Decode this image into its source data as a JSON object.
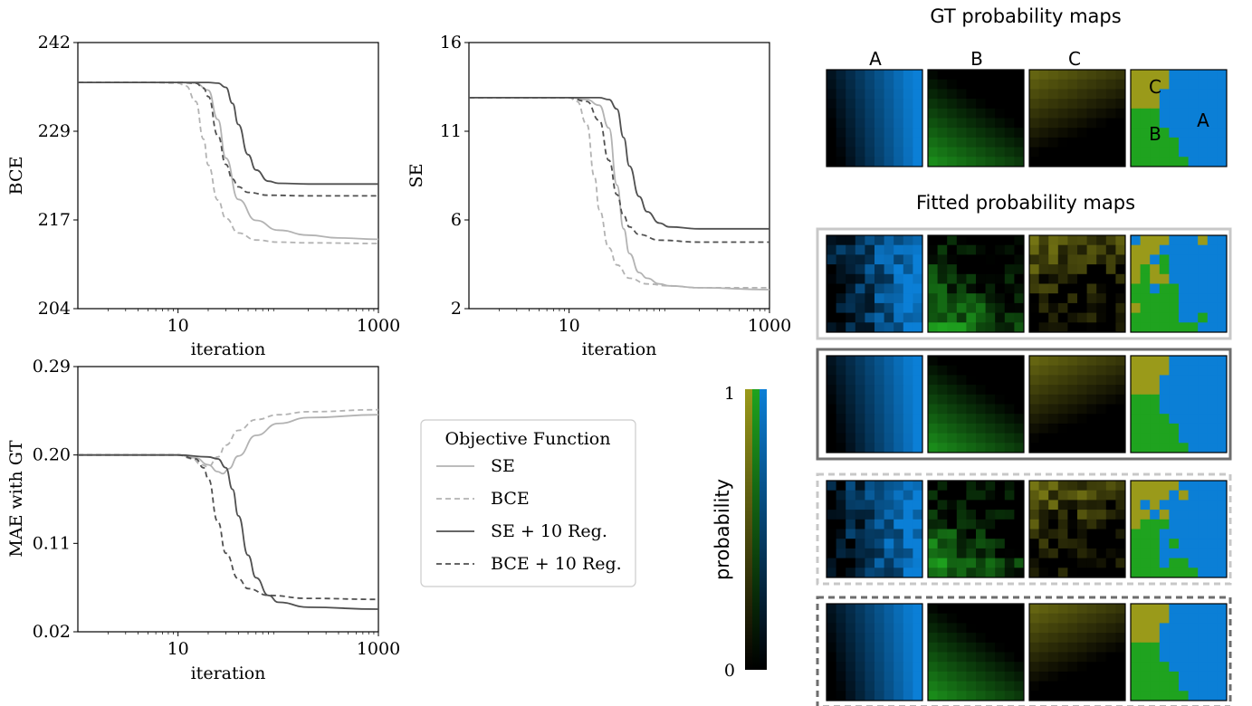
{
  "chart_data": [
    {
      "type": "line",
      "ylabel": "BCE",
      "xlabel": "iteration",
      "xscale": "log",
      "xlim": [
        1,
        1000
      ],
      "ylim": [
        204,
        242
      ],
      "yticks": [
        "204",
        "217",
        "229",
        "242"
      ],
      "xticks": [
        "10",
        "1000"
      ],
      "series": [
        {
          "name": "SE",
          "style": "solid",
          "color": "#b3b3b3",
          "x": [
            1,
            5,
            10,
            15,
            20,
            25,
            30,
            40,
            60,
            100,
            200,
            400,
            1000
          ],
          "y": [
            236.3,
            236.3,
            236.3,
            236.2,
            235.2,
            231.0,
            225.5,
            219.6,
            216.6,
            215.2,
            214.5,
            214.1,
            213.9
          ]
        },
        {
          "name": "BCE",
          "style": "dashed",
          "color": "#b3b3b3",
          "x": [
            1,
            5,
            10,
            12,
            15,
            18,
            20,
            25,
            30,
            40,
            60,
            100,
            200,
            1000
          ],
          "y": [
            236.3,
            236.3,
            236.2,
            235.8,
            233.6,
            228.2,
            224.5,
            219.5,
            216.9,
            214.8,
            213.8,
            213.5,
            213.4,
            213.3
          ]
        },
        {
          "name": "SE + 10 Reg.",
          "style": "solid",
          "color": "#505050",
          "x": [
            1,
            10,
            20,
            25,
            30,
            35,
            40,
            50,
            60,
            80,
            100,
            200,
            1000
          ],
          "y": [
            236.3,
            236.3,
            236.3,
            236.2,
            235.6,
            233.3,
            230.3,
            226.0,
            223.8,
            222.2,
            221.9,
            221.8,
            221.8
          ]
        },
        {
          "name": "BCE + 10 Reg.",
          "style": "dashed",
          "color": "#505050",
          "x": [
            1,
            10,
            15,
            18,
            20,
            25,
            30,
            35,
            40,
            50,
            80,
            200,
            1000
          ],
          "y": [
            236.3,
            236.3,
            236.2,
            235.5,
            234.3,
            228.7,
            224.6,
            222.5,
            221.4,
            220.6,
            220.2,
            220.1,
            220.1
          ]
        }
      ]
    },
    {
      "type": "line",
      "ylabel": "SE",
      "xlabel": "iteration",
      "xscale": "log",
      "xlim": [
        1,
        1000
      ],
      "ylim": [
        2,
        16
      ],
      "yticks": [
        "2",
        "6",
        "11",
        "16"
      ],
      "xticks": [
        "10",
        "1000"
      ],
      "series": [
        {
          "name": "SE",
          "style": "solid",
          "color": "#b3b3b3",
          "x": [
            1,
            10,
            15,
            20,
            25,
            30,
            35,
            40,
            50,
            60,
            80,
            100,
            200,
            1000
          ],
          "y": [
            13.1,
            13.1,
            13.0,
            12.7,
            11.5,
            8.5,
            6.2,
            4.9,
            3.9,
            3.6,
            3.3,
            3.2,
            3.1,
            3.0
          ]
        },
        {
          "name": "BCE",
          "style": "dashed",
          "color": "#b3b3b3",
          "x": [
            1,
            10,
            12,
            15,
            18,
            20,
            25,
            30,
            40,
            60,
            100,
            200,
            1000
          ],
          "y": [
            13.1,
            13.1,
            12.9,
            11.7,
            8.9,
            7.2,
            5.2,
            4.3,
            3.6,
            3.3,
            3.2,
            3.1,
            3.1
          ]
        },
        {
          "name": "SE + 10 Reg.",
          "style": "solid",
          "color": "#505050",
          "x": [
            1,
            10,
            20,
            25,
            30,
            35,
            40,
            50,
            60,
            80,
            100,
            200,
            1000
          ],
          "y": [
            13.1,
            13.1,
            13.1,
            13.0,
            12.5,
            11.0,
            9.5,
            7.9,
            7.1,
            6.5,
            6.3,
            6.2,
            6.2
          ]
        },
        {
          "name": "BCE + 10 Reg.",
          "style": "dashed",
          "color": "#505050",
          "x": [
            1,
            10,
            15,
            20,
            25,
            30,
            35,
            40,
            50,
            80,
            200,
            1000
          ],
          "y": [
            13.1,
            13.1,
            12.9,
            11.9,
            9.8,
            8.0,
            6.9,
            6.3,
            5.9,
            5.6,
            5.5,
            5.5
          ]
        }
      ]
    },
    {
      "type": "line",
      "ylabel": "MAE with GT",
      "xlabel": "iteration",
      "xscale": "log",
      "xlim": [
        1,
        1000
      ],
      "ylim": [
        0.02,
        0.29
      ],
      "yticks": [
        "0.02",
        "0.11",
        "0.20",
        "0.29"
      ],
      "xticks": [
        "10",
        "1000"
      ],
      "series": [
        {
          "name": "SE",
          "style": "solid",
          "color": "#b3b3b3",
          "x": [
            1,
            10,
            15,
            20,
            25,
            28,
            32,
            40,
            60,
            100,
            200,
            1000
          ],
          "y": [
            0.2,
            0.2,
            0.197,
            0.19,
            0.183,
            0.181,
            0.186,
            0.199,
            0.22,
            0.232,
            0.238,
            0.241
          ]
        },
        {
          "name": "BCE",
          "style": "dashed",
          "color": "#b3b3b3",
          "x": [
            1,
            10,
            14,
            17,
            20,
            25,
            30,
            40,
            60,
            100,
            200,
            1000
          ],
          "y": [
            0.2,
            0.2,
            0.196,
            0.19,
            0.188,
            0.198,
            0.21,
            0.225,
            0.236,
            0.241,
            0.244,
            0.246
          ]
        },
        {
          "name": "SE + 10 Reg.",
          "style": "solid",
          "color": "#505050",
          "x": [
            1,
            10,
            20,
            25,
            30,
            35,
            40,
            50,
            60,
            80,
            100,
            200,
            1000
          ],
          "y": [
            0.2,
            0.2,
            0.198,
            0.196,
            0.187,
            0.165,
            0.138,
            0.098,
            0.075,
            0.057,
            0.05,
            0.045,
            0.043
          ]
        },
        {
          "name": "BCE + 10 Reg.",
          "style": "dashed",
          "color": "#505050",
          "x": [
            1,
            10,
            15,
            18,
            20,
            25,
            30,
            40,
            50,
            80,
            200,
            1000
          ],
          "y": [
            0.2,
            0.2,
            0.196,
            0.187,
            0.176,
            0.132,
            0.1,
            0.074,
            0.064,
            0.057,
            0.054,
            0.053
          ]
        }
      ]
    }
  ],
  "legend": {
    "title": "Objective Function",
    "entries": [
      {
        "label": "SE",
        "style": "solid",
        "color": "#b3b3b3"
      },
      {
        "label": "BCE",
        "style": "dashed",
        "color": "#b3b3b3"
      },
      {
        "label": "SE + 10 Reg.",
        "style": "solid",
        "color": "#505050"
      },
      {
        "label": "BCE + 10 Reg.",
        "style": "dashed",
        "color": "#505050"
      }
    ]
  },
  "colorbar": {
    "label": "probability",
    "tick_top": "1",
    "tick_bottom": "0",
    "colors": {
      "A": "#0b7fd6",
      "B": "#1fa31f",
      "C": "#9a9a1a"
    }
  },
  "maps": {
    "gt_title": "GT probability maps",
    "fitted_title": "Fitted probability maps",
    "columns": [
      "A",
      "B",
      "C"
    ],
    "region_labels": [
      "C",
      "A",
      "B"
    ],
    "fitted_frames": [
      {
        "style": "solid",
        "color": "#c8c8c8",
        "kind": "noisy"
      },
      {
        "style": "solid",
        "color": "#6e6e6e",
        "kind": "smooth"
      },
      {
        "style": "dashed",
        "color": "#c8c8c8",
        "kind": "noisy"
      },
      {
        "style": "dashed",
        "color": "#6e6e6e",
        "kind": "smooth"
      }
    ]
  }
}
